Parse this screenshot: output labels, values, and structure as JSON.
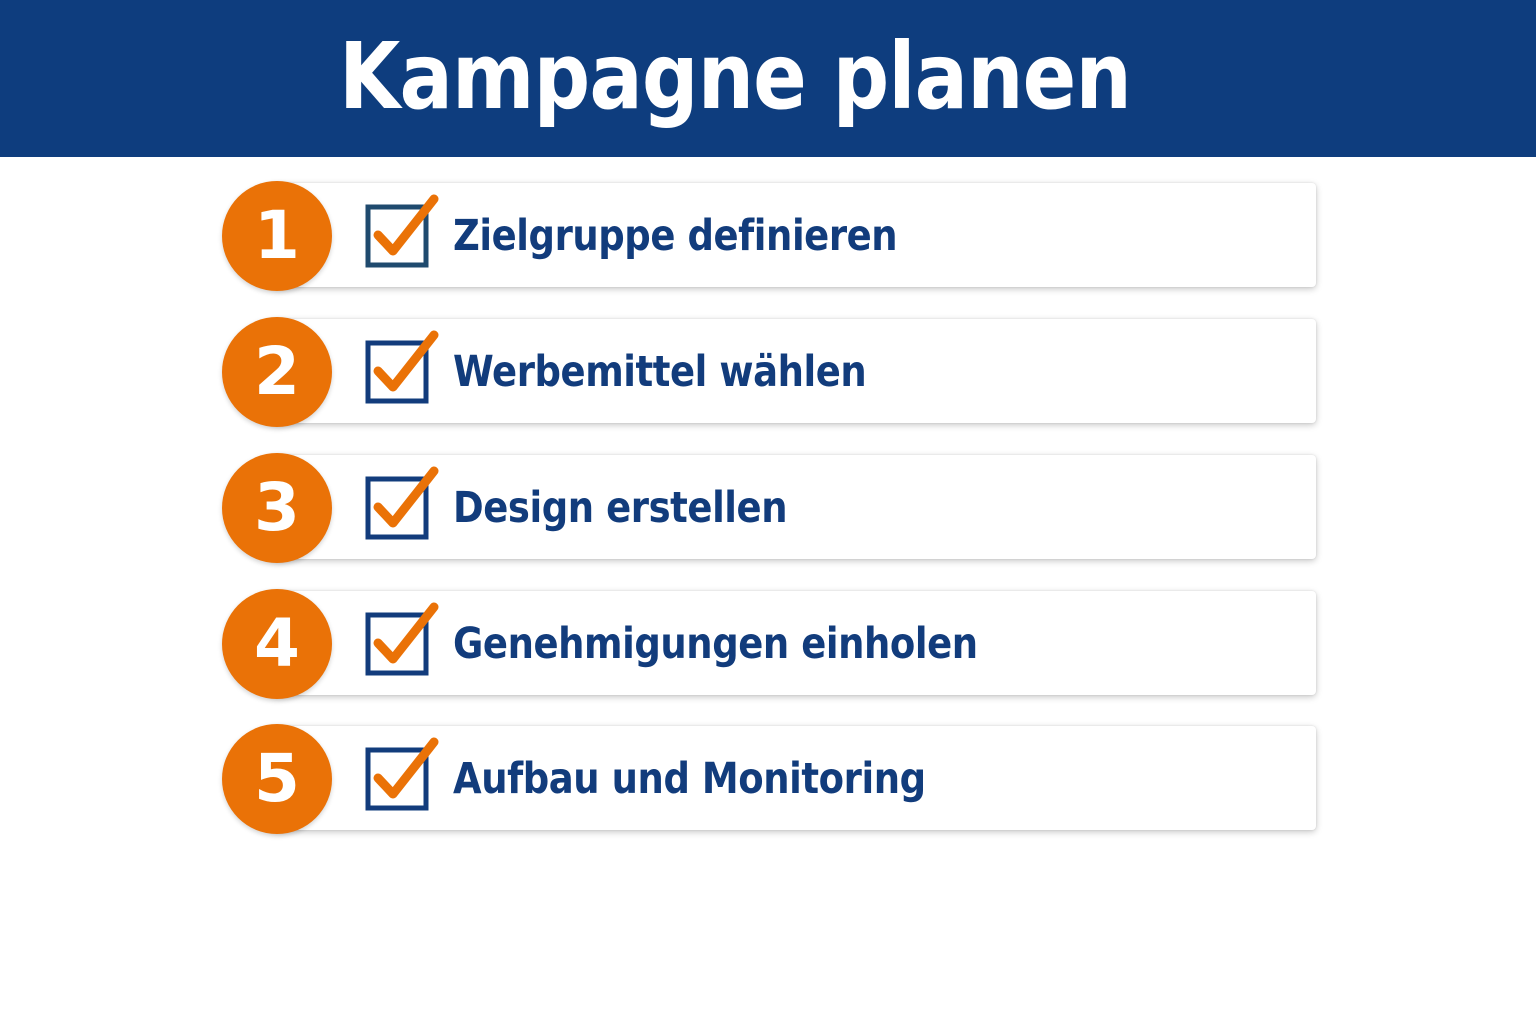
{
  "header": {
    "title": "Kampagne planen",
    "background_color": "#0e3d7e"
  },
  "steps": [
    {
      "number": "1",
      "label": "Zielgruppe definieren",
      "checked": true,
      "icon": "checkbox-checked-icon"
    },
    {
      "number": "2",
      "label": "Werbemittel wählen",
      "checked": true,
      "icon": "checkbox-checked-icon"
    },
    {
      "number": "3",
      "label": "Design erstellen",
      "checked": true,
      "icon": "checkbox-checked-icon"
    },
    {
      "number": "4",
      "label": "Genehmigungen einholen",
      "checked": true,
      "icon": "checkbox-checked-icon"
    },
    {
      "number": "5",
      "label": "Aufbau und Monitoring",
      "checked": true,
      "icon": "checkbox-checked-icon"
    }
  ],
  "colors": {
    "accent_orange": "#ea7207",
    "text_blue": "#123c7c",
    "card_background": "#ffffff"
  }
}
